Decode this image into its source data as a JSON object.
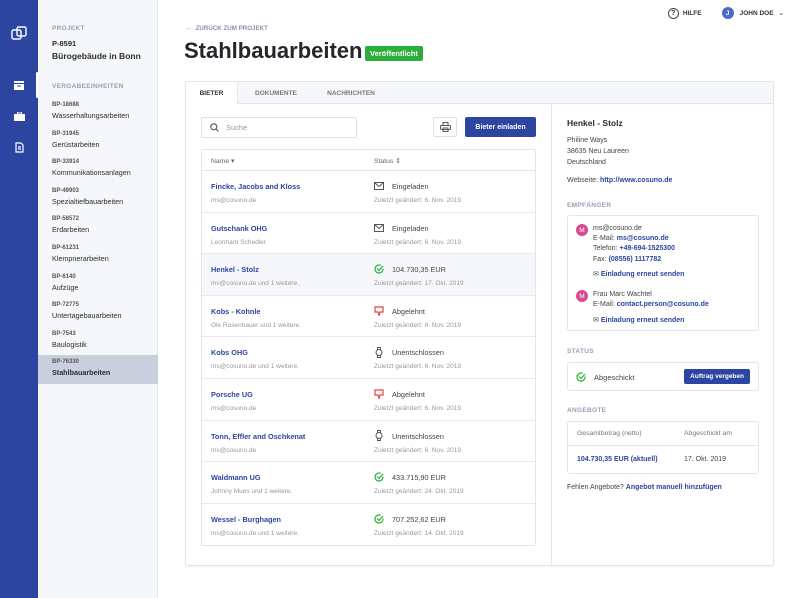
{
  "rail": {
    "icons": [
      "logo-icon",
      "inbox-icon",
      "briefcase-icon",
      "document-icon"
    ]
  },
  "sidebar": {
    "project_caption": "PROJEKT",
    "project_id": "P-8591",
    "project_name": "Bürogebäude in Bonn",
    "units_caption": "VERGABEEINHEITEN",
    "items": [
      {
        "code": "BP-18688",
        "name": "Wasserhaltungsarbeiten"
      },
      {
        "code": "BP-31945",
        "name": "Gerüstarbeiten"
      },
      {
        "code": "BP-33914",
        "name": "Kommunikationsanlagen"
      },
      {
        "code": "BP-49903",
        "name": "Spezialtiefbauarbeiten"
      },
      {
        "code": "BP-58572",
        "name": "Erdarbeiten"
      },
      {
        "code": "BP-61231",
        "name": "Klempnerarbeiten"
      },
      {
        "code": "BP-6140",
        "name": "Aufzüge"
      },
      {
        "code": "BP-72775",
        "name": "Untertagebauarbeiten"
      },
      {
        "code": "BP-7543",
        "name": "Baulogistik"
      },
      {
        "code": "BP-76330",
        "name": "Stahlbauarbeiten",
        "active": true
      }
    ]
  },
  "topbar": {
    "help": "HILFE",
    "user_initial": "J",
    "user": "JOHN DOE"
  },
  "header": {
    "back": "ZURÜCK ZUM PROJEKT",
    "title": "Stahlbauarbeiten",
    "badge": "Veröffentlicht"
  },
  "tabs": [
    {
      "label": "BIETER"
    },
    {
      "label": "DOKUMENTE"
    },
    {
      "label": "NACHRICHTEN"
    }
  ],
  "toolbar": {
    "search_placeholder": "Suche",
    "invite": "Bieter einladen"
  },
  "table": {
    "col_name": "Name ▾",
    "col_status": "Status ⇕",
    "rows": [
      {
        "name": "Fincke, Jacobs and Kloss",
        "sub": "ms@cosuno.de",
        "status": "Eingeladen",
        "icon": "mail",
        "date": "Zuletzt geändert: 6. Nov. 2019"
      },
      {
        "name": "Gutschank OHG",
        "sub": "Leonhard Schedler",
        "status": "Eingeladen",
        "icon": "mail",
        "date": "Zuletzt geändert: 6. Nov. 2019"
      },
      {
        "name": "Henkel - Stolz",
        "sub": "ms@cosuno.de und 1 weitere.",
        "status": "104.730,35 EUR",
        "icon": "check",
        "date": "Zuletzt geändert: 17. Okt. 2019",
        "selected": true
      },
      {
        "name": "Kobs - Kohnle",
        "sub": "Ole Rosenbauer und 1 weitere.",
        "status": "Abgelehnt",
        "icon": "thumbs-down",
        "date": "Zuletzt geändert: 6. Nov. 2019"
      },
      {
        "name": "Kobs OHG",
        "sub": "ms@cosuno.de und 1 weitere.",
        "status": "Unentschlossen",
        "icon": "watch",
        "date": "Zuletzt geändert: 6. Nov. 2019"
      },
      {
        "name": "Porsche UG",
        "sub": "ms@cosuno.de",
        "status": "Abgelehnt",
        "icon": "thumbs-down",
        "date": "Zuletzt geändert: 6. Nov. 2019"
      },
      {
        "name": "Tonn, Effler and Oschkenat",
        "sub": "ms@cosuno.de",
        "status": "Unentschlossen",
        "icon": "watch",
        "date": "Zuletzt geändert: 6. Nov. 2019"
      },
      {
        "name": "Waldmann UG",
        "sub": "Johnny Mues und 1 weitere.",
        "status": "433.715,90 EUR",
        "icon": "check",
        "date": "Zuletzt geändert: 24. Okt. 2019"
      },
      {
        "name": "Wessel - Burghagen",
        "sub": "ms@cosuno.de und 1 weitere.",
        "status": "707.252,62 EUR",
        "icon": "check",
        "date": "Zuletzt geändert: 14. Okt. 2019"
      }
    ]
  },
  "detail": {
    "name": "Henkel - Stolz",
    "address": [
      "Philine Ways",
      "38635 Neu Laureen",
      "Deutschland"
    ],
    "website_label": "Webseite:",
    "website": "http://www.cosuno.de",
    "recipients_caption": "EMPFÄNGER",
    "r1": {
      "initial": "M",
      "name": "ms@cosuno.de",
      "email_label": "E-Mail:",
      "email": "ms@cosuno.de",
      "phone_label": "Telefon:",
      "phone": "+49-694-1525300",
      "fax_label": "Fax:",
      "fax": "(08556) 1117782",
      "resend": "Einladung erneut senden"
    },
    "r2": {
      "initial": "M",
      "name": "Frau Marc Wachtel",
      "email_label": "E-Mail:",
      "email": "contact.person@cosuno.de",
      "resend": "Einladung erneut senden"
    },
    "status_caption": "STATUS",
    "status": "Abgeschickt",
    "award": "Auftrag vergeben",
    "offers_caption": "ANGEBOTE",
    "offers_col1": "Gesamtbetrag (netto)",
    "offers_col2": "Abgeschickt am",
    "offer_amount": "104.730,35 EUR (aktuell)",
    "offer_date": "17. Okt. 2019",
    "missing": "Fehlen Angebote?",
    "add_manual": "Angebot manuell hinzufügen"
  },
  "colors": {
    "primary": "#2c45a0",
    "success": "#2cae3a",
    "danger": "#e0453a",
    "avatar": "#d94b8e"
  }
}
